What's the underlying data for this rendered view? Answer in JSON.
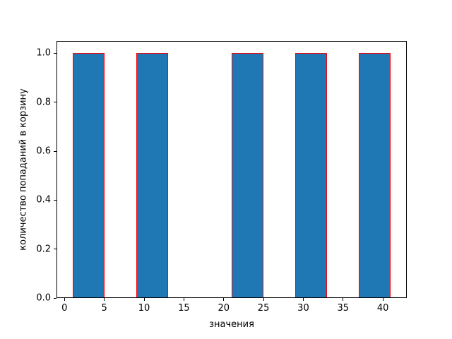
{
  "figure": {
    "background": "#ffffff"
  },
  "chart_data": {
    "type": "bar",
    "subtype": "histogram",
    "title": "",
    "xlabel": "значения",
    "ylabel": "количество попаданий в корзину",
    "xlim": [
      -1,
      43
    ],
    "ylim": [
      0,
      1.05
    ],
    "grid": false,
    "legend": null,
    "x_ticks": [
      0,
      5,
      10,
      15,
      20,
      25,
      30,
      35,
      40
    ],
    "x_tick_labels": [
      "0",
      "5",
      "10",
      "15",
      "20",
      "25",
      "30",
      "35",
      "40"
    ],
    "y_ticks": [
      0.0,
      0.2,
      0.4,
      0.6,
      0.8,
      1.0
    ],
    "y_tick_labels": [
      "0.0",
      "0.2",
      "0.4",
      "0.6",
      "0.8",
      "1.0"
    ],
    "bin_width": 4,
    "bins": [
      {
        "start": 1,
        "end": 5,
        "count": 1
      },
      {
        "start": 5,
        "end": 9,
        "count": 0
      },
      {
        "start": 9,
        "end": 13,
        "count": 1
      },
      {
        "start": 13,
        "end": 17,
        "count": 0
      },
      {
        "start": 17,
        "end": 21,
        "count": 0
      },
      {
        "start": 21,
        "end": 25,
        "count": 1
      },
      {
        "start": 25,
        "end": 29,
        "count": 0
      },
      {
        "start": 29,
        "end": 33,
        "count": 1
      },
      {
        "start": 33,
        "end": 37,
        "count": 0
      },
      {
        "start": 37,
        "end": 41,
        "count": 1
      }
    ],
    "baseline_range": [
      1,
      41
    ],
    "colors": {
      "bar_fill": "#1f77b4",
      "bar_edge": "#ff0000",
      "axis": "#000000",
      "text": "#000000",
      "background": "#ffffff"
    }
  }
}
